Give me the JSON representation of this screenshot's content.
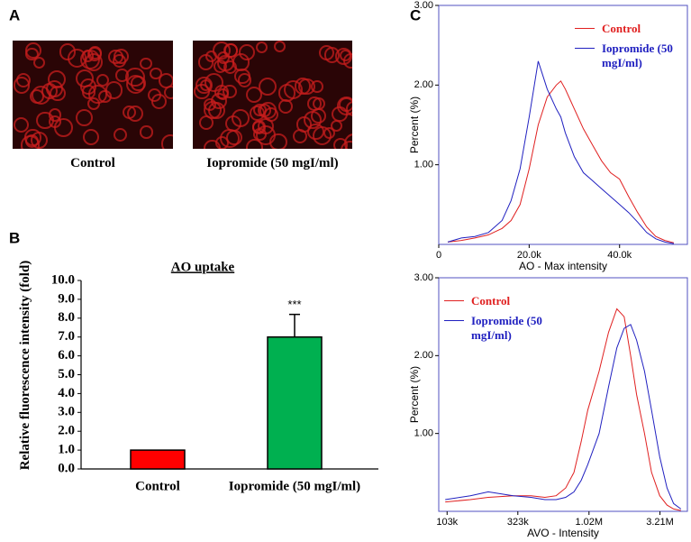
{
  "panels": [
    "A",
    "B",
    "C"
  ],
  "images": [
    {
      "caption": "Control"
    },
    {
      "caption": "Iopromide (50 mgI/ml)"
    }
  ],
  "chart_data": [
    {
      "type": "bar",
      "title": "AO uptake",
      "y_label": "Relative fluorescence intensity (fold)",
      "categories": [
        "Control",
        "Iopromide (50 mgI/ml)"
      ],
      "values": [
        1.0,
        7.0
      ],
      "errors": [
        null,
        1.2
      ],
      "colors": [
        "#ff0000",
        "#00b050"
      ],
      "annotations": [
        null,
        "***"
      ],
      "ylim": [
        0,
        10
      ],
      "yticks": [
        {
          "value": 0,
          "label": "0.0"
        },
        {
          "value": 1,
          "label": "1.0"
        },
        {
          "value": 2,
          "label": "2.0"
        },
        {
          "value": 3,
          "label": "3.0"
        },
        {
          "value": 4,
          "label": "4.0"
        },
        {
          "value": 5,
          "label": "5.0"
        },
        {
          "value": 6,
          "label": "6.0"
        },
        {
          "value": 7,
          "label": "7.0"
        },
        {
          "value": 8,
          "label": "8.0"
        },
        {
          "value": 9,
          "label": "9.0"
        },
        {
          "value": 10,
          "label": "10.0"
        }
      ]
    },
    {
      "type": "line",
      "x_label": "AO - Max intensity",
      "y_label": "Percent (%)",
      "log_x": false,
      "legend": "upper right",
      "xlim": [
        0,
        55000
      ],
      "ylim": [
        0,
        3
      ],
      "xticks": [
        0,
        {
          "value": 20000,
          "label": "20.0k"
        },
        {
          "value": 40000,
          "label": "40.0k"
        }
      ],
      "yticks": [
        {
          "value": 1,
          "label": "1.00"
        },
        {
          "value": 2,
          "label": "2.00"
        },
        {
          "value": 3,
          "label": "3.00"
        }
      ],
      "x": [
        2000,
        5000,
        8000,
        11000,
        14000,
        16000,
        18000,
        20000,
        22000,
        24000,
        26000,
        27000,
        28000,
        30000,
        32000,
        34000,
        36000,
        38000,
        40000,
        42000,
        44000,
        46000,
        48000,
        50000,
        52000
      ],
      "series": [
        {
          "name": "Control",
          "color": "#e02020",
          "values": [
            0.03,
            0.05,
            0.08,
            0.12,
            0.2,
            0.3,
            0.5,
            0.95,
            1.5,
            1.85,
            2.0,
            2.05,
            1.95,
            1.7,
            1.45,
            1.25,
            1.05,
            0.9,
            0.82,
            0.6,
            0.4,
            0.22,
            0.1,
            0.05,
            0.02
          ]
        },
        {
          "name": "Iopromide (50 mgI/ml)",
          "color": "#2020c0",
          "values": [
            0.03,
            0.08,
            0.1,
            0.15,
            0.3,
            0.55,
            0.95,
            1.6,
            2.3,
            1.95,
            1.7,
            1.6,
            1.4,
            1.1,
            0.9,
            0.8,
            0.7,
            0.6,
            0.5,
            0.4,
            0.28,
            0.15,
            0.07,
            0.03,
            0.01
          ]
        }
      ]
    },
    {
      "type": "line",
      "x_label": "AVO - Intensity",
      "y_label": "Percent (%)",
      "log_x": true,
      "legend": "upper left",
      "xlim": [
        90000,
        5000000
      ],
      "ylim": [
        0,
        3
      ],
      "xticks": [
        {
          "value": 103000,
          "label": "103k"
        },
        {
          "value": 323000,
          "label": "323k"
        },
        {
          "value": 1020000,
          "label": "1.02M"
        },
        {
          "value": 3210000,
          "label": "3.21M"
        }
      ],
      "yticks": [
        {
          "value": 1,
          "label": "1.00"
        },
        {
          "value": 2,
          "label": "2.00"
        },
        {
          "value": 3,
          "label": "3.00"
        }
      ],
      "x": [
        100000,
        150000,
        200000,
        300000,
        400000,
        500000,
        600000,
        700000,
        800000,
        900000,
        1000000,
        1200000,
        1400000,
        1600000,
        1800000,
        2000000,
        2200000,
        2500000,
        2800000,
        3200000,
        3600000,
        4000000,
        4500000
      ],
      "series": [
        {
          "name": "Control",
          "color": "#e02020",
          "values": [
            0.12,
            0.15,
            0.18,
            0.2,
            0.2,
            0.18,
            0.2,
            0.3,
            0.5,
            0.9,
            1.3,
            1.8,
            2.3,
            2.6,
            2.5,
            2.0,
            1.5,
            1.0,
            0.5,
            0.2,
            0.08,
            0.03,
            0.01
          ]
        },
        {
          "name": "Iopromide (50 mgI/ml)",
          "color": "#2020c0",
          "values": [
            0.15,
            0.2,
            0.25,
            0.2,
            0.18,
            0.15,
            0.15,
            0.18,
            0.25,
            0.4,
            0.6,
            1.0,
            1.6,
            2.1,
            2.35,
            2.4,
            2.2,
            1.8,
            1.3,
            0.7,
            0.3,
            0.1,
            0.03
          ]
        }
      ]
    }
  ]
}
